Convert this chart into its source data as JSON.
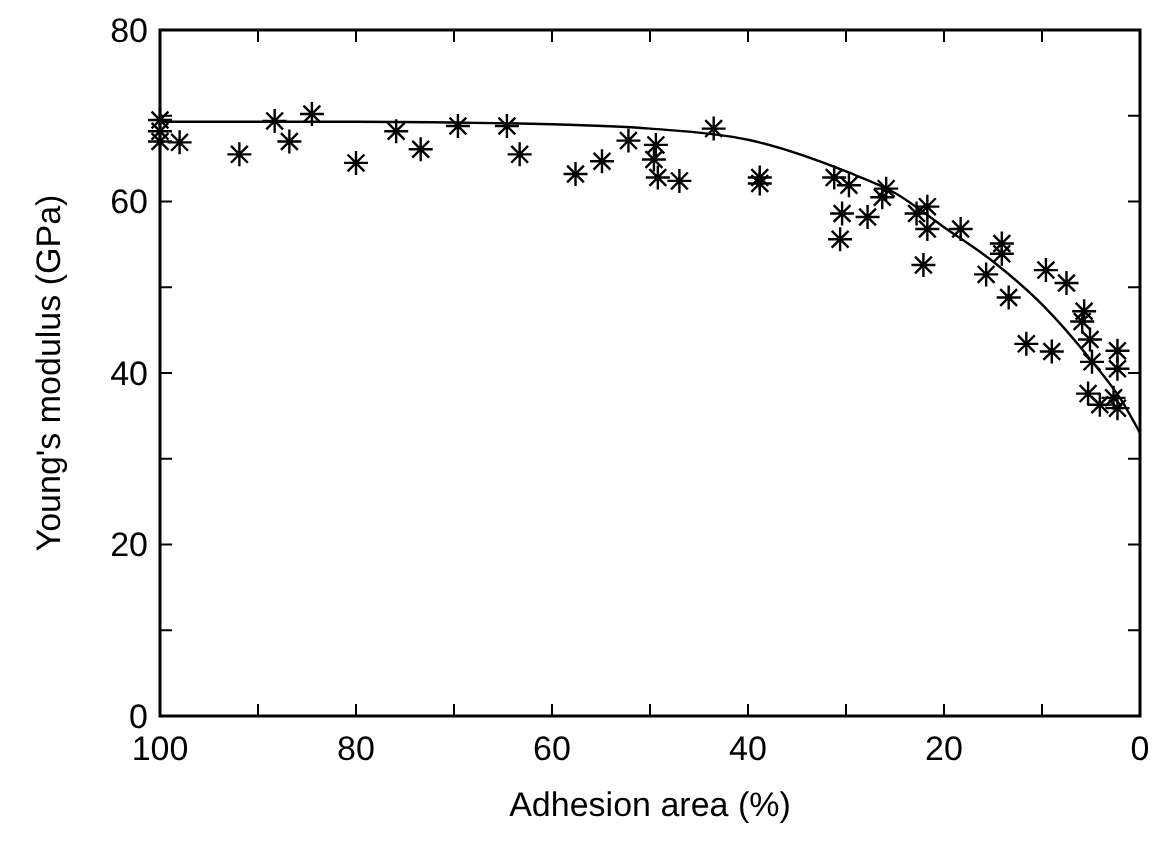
{
  "chart_data": {
    "type": "scatter",
    "xlabel": "Adhesion area (%)",
    "ylabel": "Young's modulus (GPa)",
    "xlim": [
      100,
      0
    ],
    "ylim": [
      0,
      80
    ],
    "xticks": [
      100,
      {
        "value": 90,
        "label": null
      },
      80,
      {
        "value": 70,
        "label": null
      },
      60,
      {
        "value": 50,
        "label": null
      },
      40,
      {
        "value": 30,
        "label": null
      },
      20,
      {
        "value": 10,
        "label": null
      },
      0
    ],
    "yticks": [
      0,
      {
        "value": 10,
        "label": null
      },
      20,
      {
        "value": 30,
        "label": null
      },
      40,
      {
        "value": 50,
        "label": null
      },
      60,
      {
        "value": 70,
        "label": null
      },
      80
    ],
    "grid": false,
    "marker": "cross",
    "series": [
      {
        "color": "#000000",
        "x": [
          100,
          100,
          100,
          98,
          91.9,
          88.3,
          86.8,
          84.5,
          80,
          75.9,
          73.4,
          69.6,
          64.6,
          63.3,
          57.6,
          54.9,
          52.2,
          49.4,
          49.6,
          49.2,
          47,
          43.5,
          38.8,
          38.8,
          31.2,
          29.7,
          30.4,
          30.6,
          27.8,
          26.3,
          25.9,
          22.8,
          21.7,
          21.7,
          22.1,
          18.3,
          14.1,
          14.1,
          15.7,
          13.4,
          11.6,
          9.6,
          7.5,
          9,
          5.7,
          5.9,
          5.1,
          4.9,
          5.3,
          4.1,
          2.3,
          2.3,
          2.7,
          2.3
        ],
        "values": [
          69.5,
          68.2,
          67,
          66.9,
          65.5,
          69.4,
          67,
          70.2,
          64.5,
          68.2,
          66.1,
          68.8,
          68.8,
          65.5,
          63.2,
          64.7,
          67.1,
          66.6,
          64.9,
          62.8,
          62.4,
          68.5,
          62.8,
          62.1,
          62.8,
          61.9,
          58.6,
          55.6,
          58.2,
          60.5,
          61.5,
          58.6,
          59.4,
          56.8,
          52.6,
          56.8,
          55.1,
          53.9,
          51.5,
          48.8,
          43.4,
          52,
          50.5,
          42.5,
          47.2,
          46,
          43.9,
          41.3,
          37.6,
          36.3,
          42.6,
          40.5,
          37.1,
          35.9
        ]
      },
      {
        "type": "line",
        "color": "#000000",
        "marker": "none",
        "line_style": "solid",
        "x": [
          100,
          80,
          60,
          50,
          40,
          30,
          25,
          20,
          15,
          10,
          5,
          2,
          0
        ],
        "values": [
          69.3,
          69.3,
          69,
          68.5,
          67.2,
          63.5,
          61,
          57,
          53,
          48,
          41.5,
          37,
          33
        ]
      }
    ]
  }
}
